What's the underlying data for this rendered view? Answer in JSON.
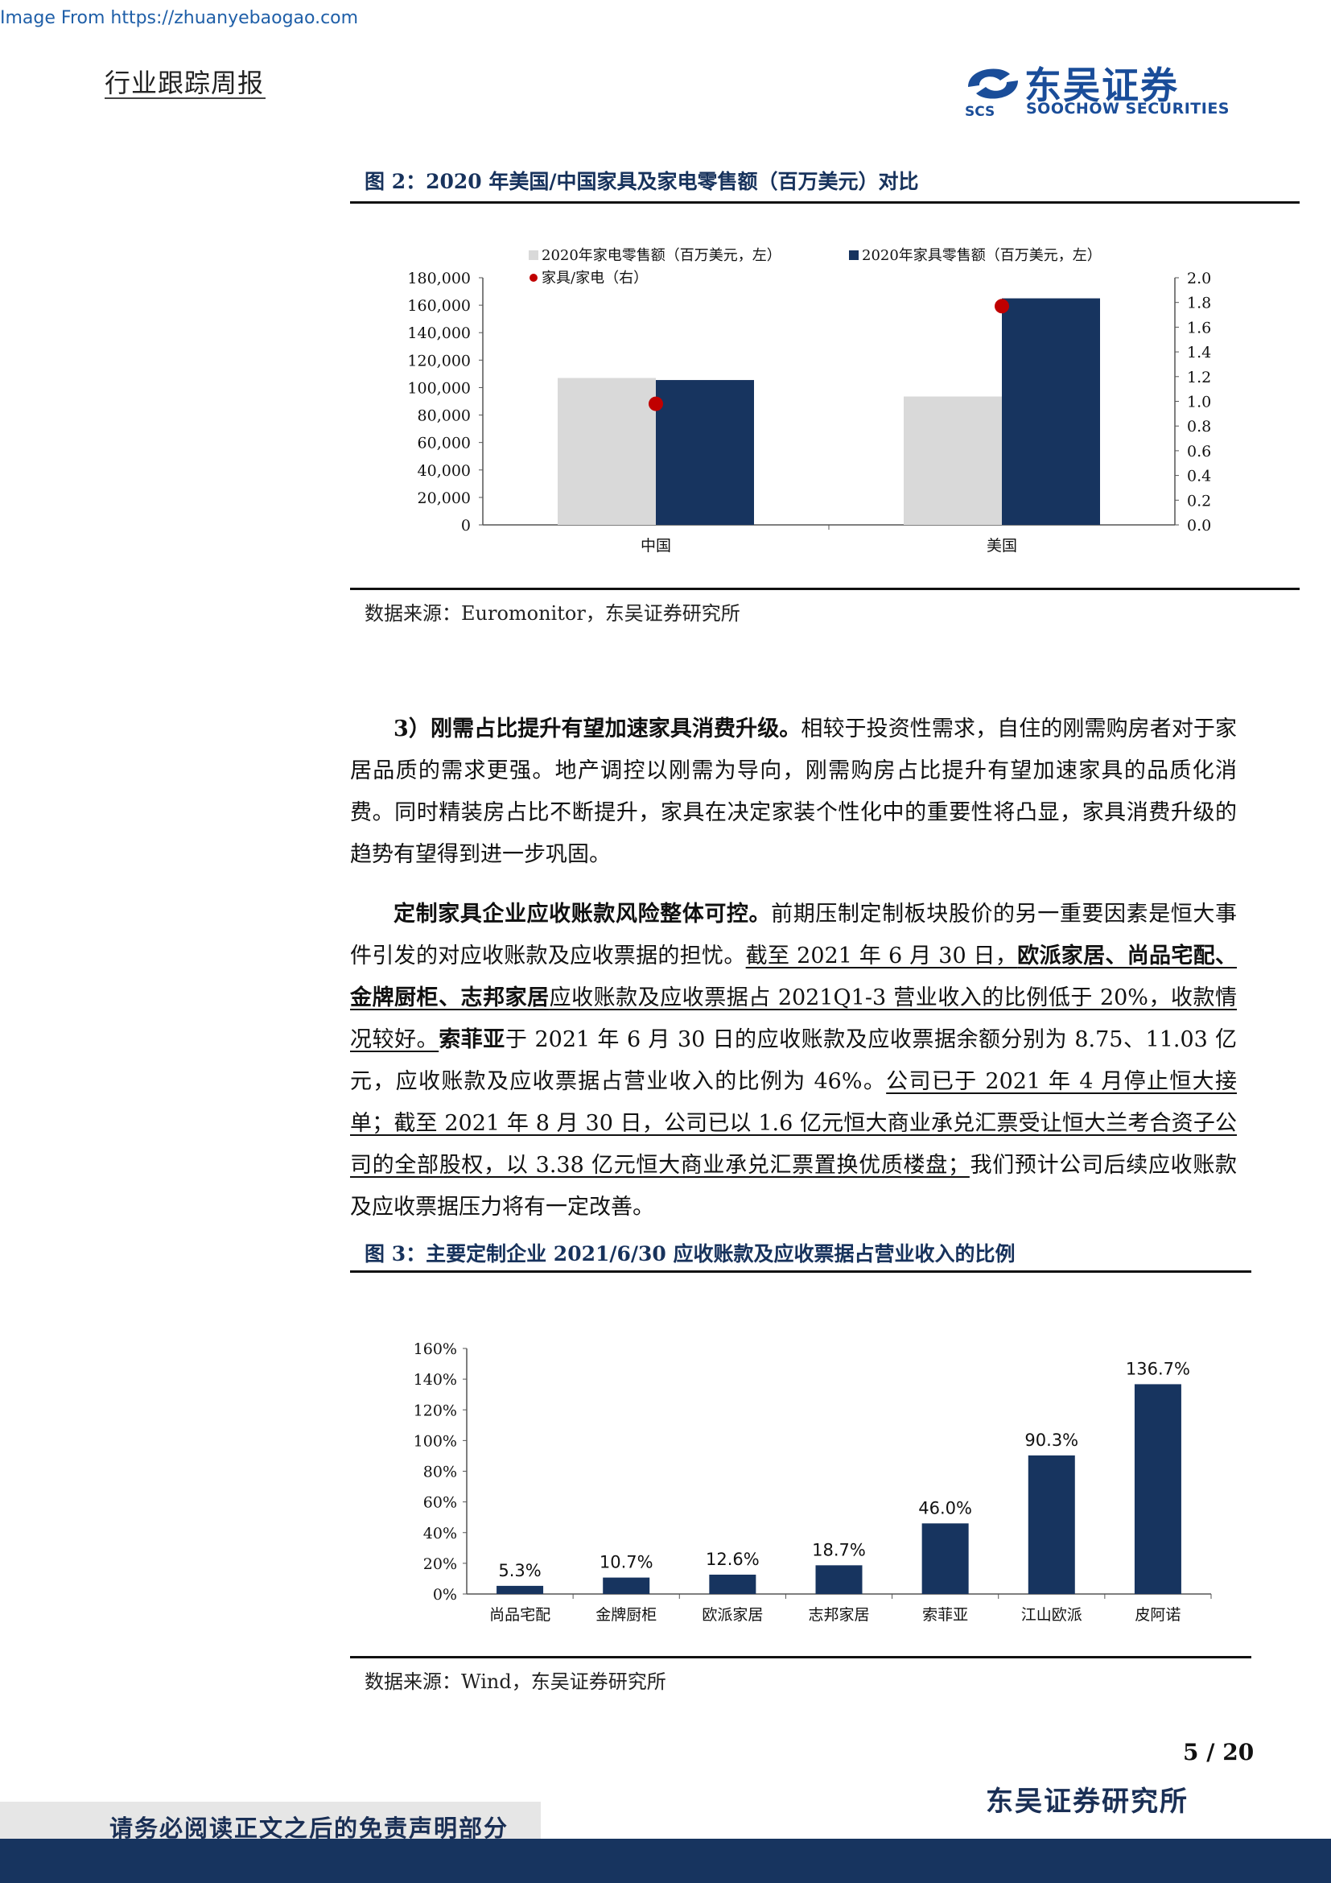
{
  "watermark": "Image From https://zhuanyebaogao.com",
  "header": {
    "report_type": "行业跟踪周报",
    "logo_cn": "东吴证券",
    "logo_en": "SOOCHOW SECURITIES",
    "logo_mark": "SCS"
  },
  "figure2": {
    "title": "图 2：2020 年美国/中国家具及家电零售额（百万美元）对比",
    "source": "数据来源：Euromonitor，东吴证券研究所"
  },
  "figure3": {
    "title": "图 3：主要定制企业 2021/6/30 应收账款及应收票据占营业收入的比例",
    "source": "数据来源：Wind，东吴证券研究所"
  },
  "paragraph1": {
    "lead": "3）刚需占比提升有望加速家具消费升级。",
    "body": "相较于投资性需求，自住的刚需购房者对于家居品质的需求更强。地产调控以刚需为导向，刚需购房占比提升有望加速家具的品质化消费。同时精装房占比不断提升，家具在决定家装个性化中的重要性将凸显，家具消费升级的趋势有望得到进一步巩固。"
  },
  "paragraph2": {
    "lead": "定制家具企业应收账款风险整体可控。",
    "s1": "前期压制定制板块股价的另一重要因素是恒大事件引发的对应收账款及应收票据的担忧。",
    "s2a": "截至 2021 年 6 月 30 日，",
    "s2b": "欧派家居、尚品宅配、金牌厨柜、志邦家居",
    "s2c": "应收账款及应收票据占 2021Q1-3 营业收入的比例低于 20%，收款情况较好。",
    "s3a": "索菲亚",
    "s3b": "于 2021 年 6 月 30 日的应收账款及应收票据余额分别为 8.75、11.03 亿元，应收账款及应收票据占营业收入的比例为 46%。",
    "s4": "公司已于 2021 年 4 月停止恒大接单；截至 2021 年 8 月 30 日，公司已以 1.6 亿元恒大商业承兑汇票受让恒大兰考合资子公司的全部股权，以 3.38 亿元恒大商业承兑汇票置换优质楼盘；",
    "s5": "我们预计公司后续应收账款及应收票据压力将有一定改善。"
  },
  "chart_data": [
    {
      "type": "bar",
      "title": "2020 年美国/中国家具及家电零售额（百万美元）对比",
      "categories": [
        "中国",
        "美国"
      ],
      "series": [
        {
          "name": "2020年家电零售额（百万美元，左）",
          "values": [
            107000,
            93500
          ],
          "color": "#d9d9d9",
          "axis": "left"
        },
        {
          "name": "2020年家具零售额（百万美元，左）",
          "values": [
            105500,
            165000
          ],
          "color": "#17345f",
          "axis": "left"
        },
        {
          "name": "家具/家电（右）",
          "values": [
            0.98,
            1.77
          ],
          "color": "#c00000",
          "axis": "right",
          "kind": "scatter"
        }
      ],
      "ylim_left": [
        0,
        180000
      ],
      "yticks_left": [
        "180,000",
        "160,000",
        "140,000",
        "120,000",
        "100,000",
        "80,000",
        "60,000",
        "40,000",
        "20,000",
        "0"
      ],
      "ylim_right": [
        0,
        2.0
      ],
      "yticks_right": [
        "2.0",
        "1.8",
        "1.6",
        "1.4",
        "1.2",
        "1.0",
        "0.8",
        "0.6",
        "0.4",
        "0.2",
        "0.0"
      ]
    },
    {
      "type": "bar",
      "title": "主要定制企业 2021/6/30 应收账款及应收票据占营业收入的比例",
      "categories": [
        "尚品宅配",
        "金牌厨柜",
        "欧派家居",
        "志邦家居",
        "索菲亚",
        "江山欧派",
        "皮阿诺"
      ],
      "values": [
        5.3,
        10.7,
        12.6,
        18.7,
        46.0,
        90.3,
        136.7
      ],
      "labels": [
        "5.3%",
        "10.7%",
        "12.6%",
        "18.7%",
        "46.0%",
        "90.3%",
        "136.7%"
      ],
      "ylim": [
        0,
        160
      ],
      "yticks": [
        "160%",
        "140%",
        "120%",
        "100%",
        "80%",
        "60%",
        "40%",
        "20%",
        "0%"
      ],
      "color": "#17345f"
    }
  ],
  "footer": {
    "page": "5 / 20",
    "institute": "东吴证券研究所",
    "disclaimer": "请务必阅读正文之后的免责声明部分"
  }
}
